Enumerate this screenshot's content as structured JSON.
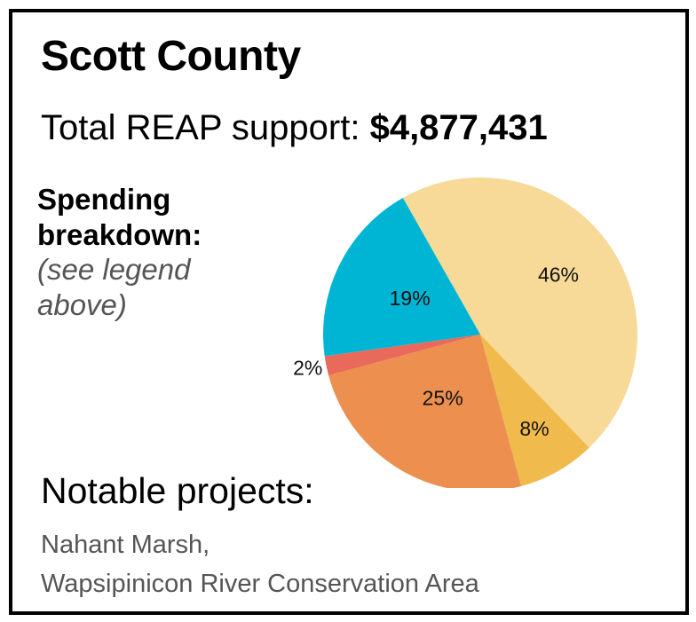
{
  "header": {
    "title": "Scott County",
    "total_label": "Total REAP support: ",
    "total_amount": "$4,877,431"
  },
  "breakdown": {
    "label_line1": "Spending",
    "label_line2": "breakdown:",
    "note_line1": "(see legend",
    "note_line2": "above)"
  },
  "projects": {
    "heading": "Notable projects:",
    "items": [
      "Nahant Marsh,",
      "Wapsipinicon River Conservation Area"
    ]
  },
  "chart_data": {
    "type": "pie",
    "title": "",
    "slices": [
      {
        "label": "46%",
        "value": 46,
        "color": "#F7D998"
      },
      {
        "label": "8%",
        "value": 8,
        "color": "#F1BA4D"
      },
      {
        "label": "25%",
        "value": 25,
        "color": "#EC8F4F"
      },
      {
        "label": "2%",
        "value": 2,
        "color": "#E96A5A"
      },
      {
        "label": "19%",
        "value": 19,
        "color": "#00B5D4"
      }
    ]
  }
}
